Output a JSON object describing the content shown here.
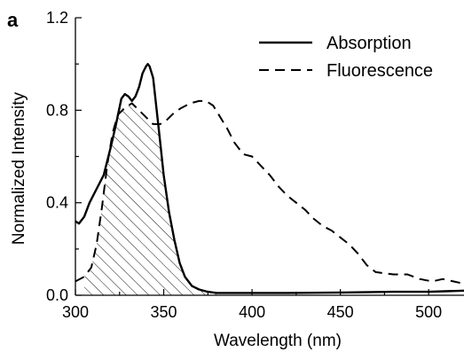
{
  "chart_data": {
    "type": "line",
    "panel_label": "a",
    "title": "",
    "xlabel": "Wavelength (nm)",
    "ylabel": "Normalized Intensity",
    "xlim": [
      300,
      520
    ],
    "ylim": [
      0.0,
      1.2
    ],
    "x_ticks": [
      300,
      350,
      400,
      450,
      500
    ],
    "x_tick_labels": [
      "300",
      "350",
      "400",
      "450",
      "500"
    ],
    "y_ticks": [
      0.0,
      0.4,
      0.8,
      1.2
    ],
    "y_tick_labels": [
      "0.0",
      "0.4",
      "0.8",
      "1.2"
    ],
    "grid": false,
    "legend_position": "top-right",
    "overlap_region": "hatched area under both curves between 305 and 385 nm",
    "series": [
      {
        "name": "Absorption",
        "style": "solid",
        "color": "#000000",
        "points": [
          [
            300,
            0.32
          ],
          [
            302,
            0.31
          ],
          [
            305,
            0.34
          ],
          [
            308,
            0.4
          ],
          [
            312,
            0.46
          ],
          [
            316,
            0.52
          ],
          [
            320,
            0.64
          ],
          [
            323,
            0.74
          ],
          [
            326,
            0.85
          ],
          [
            328,
            0.87
          ],
          [
            330,
            0.86
          ],
          [
            332,
            0.84
          ],
          [
            334,
            0.86
          ],
          [
            336,
            0.9
          ],
          [
            338,
            0.96
          ],
          [
            340,
            0.99
          ],
          [
            341,
            1.0
          ],
          [
            342,
            0.99
          ],
          [
            344,
            0.94
          ],
          [
            346,
            0.8
          ],
          [
            348,
            0.66
          ],
          [
            350,
            0.52
          ],
          [
            353,
            0.36
          ],
          [
            356,
            0.24
          ],
          [
            359,
            0.14
          ],
          [
            362,
            0.08
          ],
          [
            366,
            0.04
          ],
          [
            370,
            0.025
          ],
          [
            375,
            0.015
          ],
          [
            380,
            0.01
          ],
          [
            390,
            0.01
          ],
          [
            420,
            0.01
          ],
          [
            450,
            0.012
          ],
          [
            480,
            0.015
          ],
          [
            500,
            0.015
          ],
          [
            520,
            0.02
          ]
        ]
      },
      {
        "name": "Fluorescence",
        "style": "dashed",
        "color": "#000000",
        "points": [
          [
            300,
            0.06
          ],
          [
            305,
            0.08
          ],
          [
            309,
            0.12
          ],
          [
            312,
            0.22
          ],
          [
            315,
            0.38
          ],
          [
            318,
            0.56
          ],
          [
            321,
            0.7
          ],
          [
            324,
            0.78
          ],
          [
            328,
            0.81
          ],
          [
            332,
            0.83
          ],
          [
            336,
            0.8
          ],
          [
            340,
            0.77
          ],
          [
            344,
            0.74
          ],
          [
            348,
            0.74
          ],
          [
            352,
            0.76
          ],
          [
            356,
            0.79
          ],
          [
            360,
            0.81
          ],
          [
            365,
            0.83
          ],
          [
            370,
            0.84
          ],
          [
            374,
            0.84
          ],
          [
            378,
            0.82
          ],
          [
            382,
            0.77
          ],
          [
            386,
            0.72
          ],
          [
            390,
            0.66
          ],
          [
            395,
            0.61
          ],
          [
            400,
            0.6
          ],
          [
            405,
            0.56
          ],
          [
            410,
            0.52
          ],
          [
            415,
            0.47
          ],
          [
            420,
            0.43
          ],
          [
            425,
            0.4
          ],
          [
            430,
            0.37
          ],
          [
            435,
            0.33
          ],
          [
            440,
            0.3
          ],
          [
            445,
            0.28
          ],
          [
            450,
            0.25
          ],
          [
            455,
            0.22
          ],
          [
            460,
            0.18
          ],
          [
            465,
            0.13
          ],
          [
            470,
            0.1
          ],
          [
            480,
            0.09
          ],
          [
            488,
            0.09
          ],
          [
            495,
            0.07
          ],
          [
            502,
            0.06
          ],
          [
            508,
            0.07
          ],
          [
            514,
            0.06
          ],
          [
            520,
            0.05
          ]
        ]
      }
    ]
  }
}
